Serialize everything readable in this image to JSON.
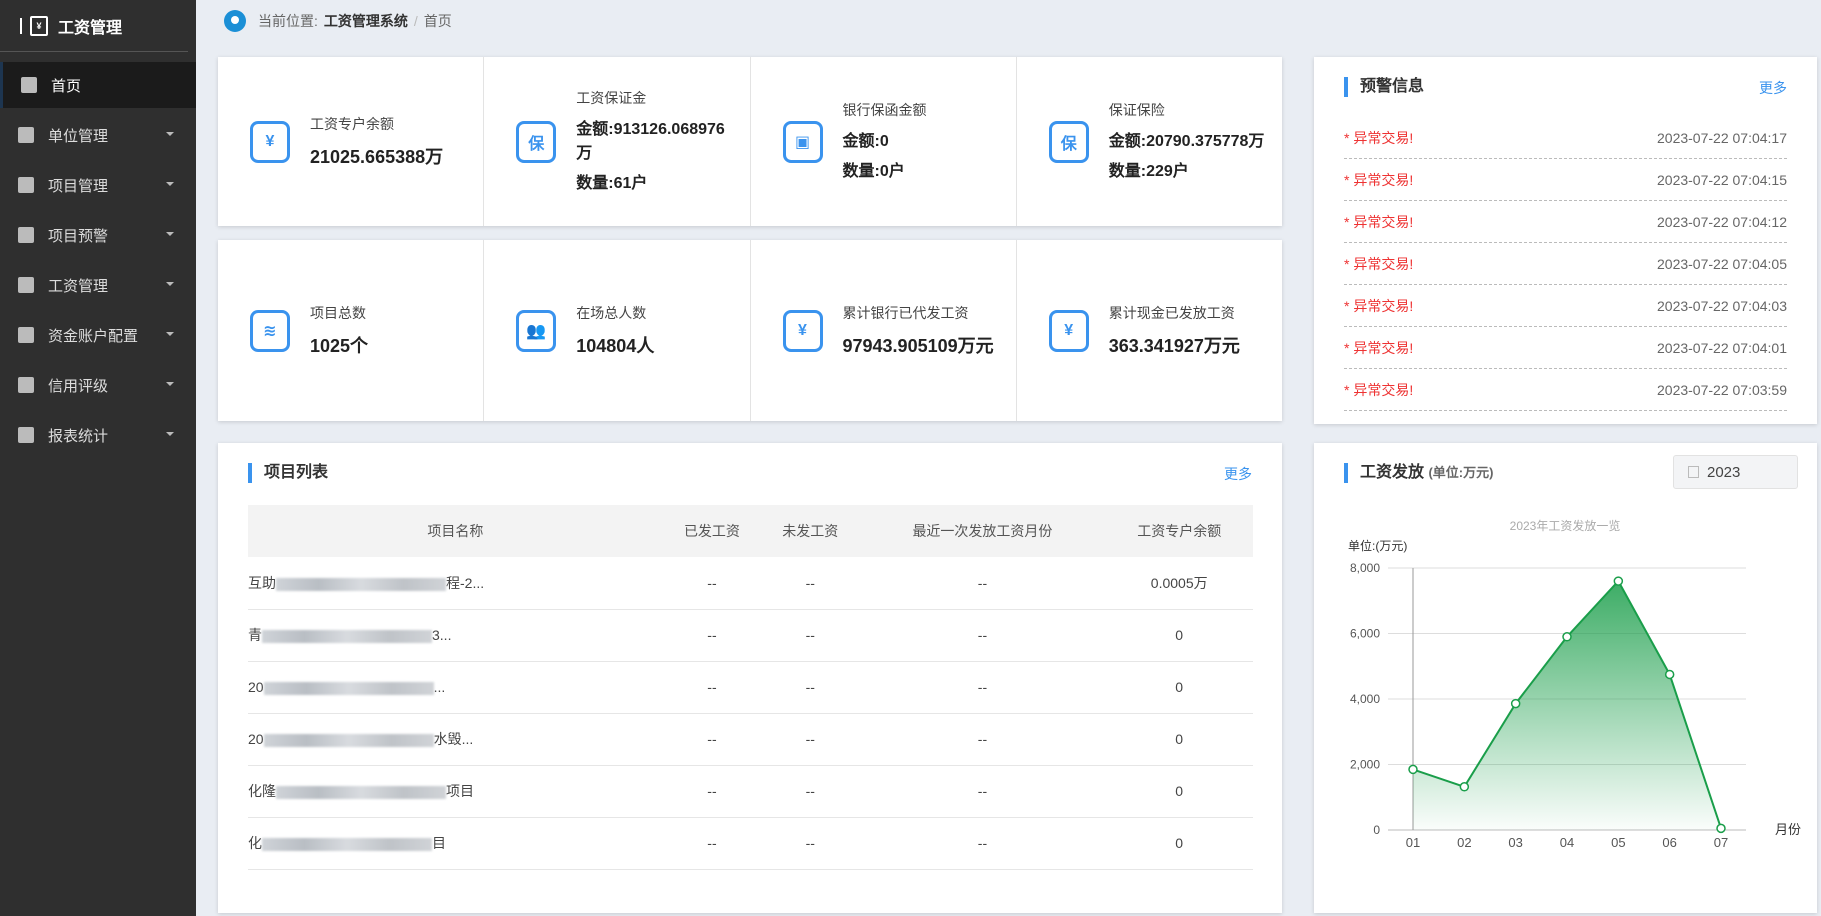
{
  "sidebar": {
    "title": "工资管理",
    "items": [
      {
        "label": "首页",
        "icon": "home-icon",
        "active": true
      },
      {
        "label": "单位管理",
        "icon": "building-icon"
      },
      {
        "label": "项目管理",
        "icon": "box-icon"
      },
      {
        "label": "项目预警",
        "icon": "box-icon"
      },
      {
        "label": "工资管理",
        "icon": "wallet-icon"
      },
      {
        "label": "资金账户配置",
        "icon": "yen-icon"
      },
      {
        "label": "信用评级",
        "icon": "yen-icon"
      },
      {
        "label": "报表统计",
        "icon": "report-icon"
      }
    ]
  },
  "breadcrumb": {
    "prefix": "当前位置:",
    "system": "工资管理系统",
    "sep": "/",
    "current": "首页"
  },
  "stats_row1": [
    {
      "title": "工资专户余额",
      "value": "21025.665388万",
      "icon": "¥"
    },
    {
      "title": "工资保证金",
      "amount": "金额:913126.068976万",
      "count": "数量:61户",
      "icon": "保"
    },
    {
      "title": "银行保函金额",
      "amount": "金额:0",
      "count": "数量:0户",
      "icon": "▣"
    },
    {
      "title": "保证保险",
      "amount": "金额:20790.375778万",
      "count": "数量:229户",
      "icon": "保"
    }
  ],
  "stats_row2": [
    {
      "title": "项目总数",
      "value": "1025个",
      "icon": "≋"
    },
    {
      "title": "在场总人数",
      "value": "104804人",
      "icon": "👥"
    },
    {
      "title": "累计银行已代发工资",
      "value": "97943.905109万元",
      "icon": "¥"
    },
    {
      "title": "累计现金已发放工资",
      "value": "363.341927万元",
      "icon": "¥"
    }
  ],
  "warnings": {
    "title": "预警信息",
    "more": "更多",
    "items": [
      {
        "text": "* 异常交易!",
        "time": "2023-07-22 07:04:17"
      },
      {
        "text": "* 异常交易!",
        "time": "2023-07-22 07:04:15"
      },
      {
        "text": "* 异常交易!",
        "time": "2023-07-22 07:04:12"
      },
      {
        "text": "* 异常交易!",
        "time": "2023-07-22 07:04:05"
      },
      {
        "text": "* 异常交易!",
        "time": "2023-07-22 07:04:03"
      },
      {
        "text": "* 异常交易!",
        "time": "2023-07-22 07:04:01"
      },
      {
        "text": "* 异常交易!",
        "time": "2023-07-22 07:03:59"
      }
    ]
  },
  "projects": {
    "title": "项目列表",
    "more": "更多",
    "columns": [
      "项目名称",
      "已发工资",
      "未发工资",
      "最近一次发放工资月份",
      "工资专户余额"
    ],
    "rows": [
      {
        "name_start": "互助",
        "name_end": "程-2...",
        "paid": "--",
        "unpaid": "--",
        "last_month": "--",
        "balance": "0.0005万"
      },
      {
        "name_start": "青",
        "name_end": "3...",
        "paid": "--",
        "unpaid": "--",
        "last_month": "--",
        "balance": "0"
      },
      {
        "name_start": "20",
        "name_end": "...",
        "paid": "--",
        "unpaid": "--",
        "last_month": "--",
        "balance": "0"
      },
      {
        "name_start": "20",
        "name_end": "水毁...",
        "paid": "--",
        "unpaid": "--",
        "last_month": "--",
        "balance": "0"
      },
      {
        "name_start": "化隆",
        "name_end": "项目",
        "paid": "--",
        "unpaid": "--",
        "last_month": "--",
        "balance": "0"
      },
      {
        "name_start": "化",
        "name_end": "目",
        "paid": "--",
        "unpaid": "--",
        "last_month": "--",
        "balance": "0"
      }
    ]
  },
  "wage_chart": {
    "title": "工资发放",
    "unit": "(单位:万元)",
    "year": "2023"
  },
  "chart_data": {
    "type": "area",
    "title": "2023年工资发放一览",
    "ylabel": "单位:(万元)",
    "xlabel": "月份",
    "categories": [
      "01",
      "02",
      "03",
      "04",
      "05",
      "06",
      "07"
    ],
    "values": [
      1850,
      1320,
      3860,
      5900,
      7600,
      4750,
      50
    ],
    "ylim": [
      0,
      8000
    ],
    "yticks": [
      "0",
      "2,000",
      "4,000",
      "6,000",
      "8,000"
    ],
    "grid": true,
    "color": "#1a9e4a"
  }
}
